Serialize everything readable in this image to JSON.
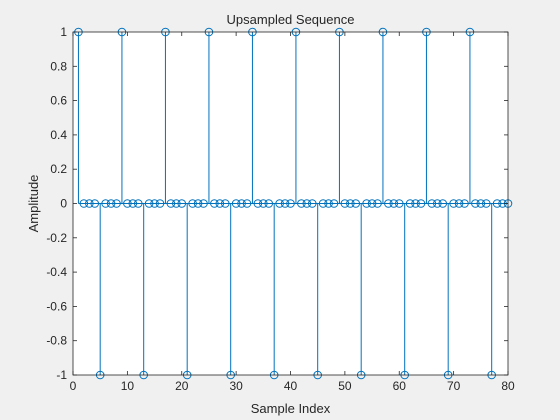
{
  "chart_data": {
    "type": "stem",
    "title": "Upsampled Sequence",
    "xlabel": "Sample Index",
    "ylabel": "Amplitude",
    "xlim": [
      0,
      80
    ],
    "ylim": [
      -1,
      1
    ],
    "xticks": [
      0,
      10,
      20,
      30,
      40,
      50,
      60,
      70,
      80
    ],
    "xtick_labels": [
      "0",
      "10",
      "20",
      "30",
      "40",
      "50",
      "60",
      "70",
      "80"
    ],
    "yticks": [
      -1,
      -0.8,
      -0.6,
      -0.4,
      -0.2,
      0,
      0.2,
      0.4,
      0.6,
      0.8,
      1
    ],
    "ytick_labels": [
      "-1",
      "-0.8",
      "-0.6",
      "-0.4",
      "-0.2",
      "0",
      "0.2",
      "0.4",
      "0.6",
      "0.8",
      "1"
    ],
    "grid": false,
    "series": [
      {
        "x": [
          1,
          2,
          3,
          4,
          5,
          6,
          7,
          8,
          9,
          10,
          11,
          12,
          13,
          14,
          15,
          16,
          17,
          18,
          19,
          20,
          21,
          22,
          23,
          24,
          25,
          26,
          27,
          28,
          29,
          30,
          31,
          32,
          33,
          34,
          35,
          36,
          37,
          38,
          39,
          40,
          41,
          42,
          43,
          44,
          45,
          46,
          47,
          48,
          49,
          50,
          51,
          52,
          53,
          54,
          55,
          56,
          57,
          58,
          59,
          60,
          61,
          62,
          63,
          64,
          65,
          66,
          67,
          68,
          69,
          70,
          71,
          72,
          73,
          74,
          75,
          76,
          77,
          78,
          79,
          80
        ],
        "y": [
          1,
          0,
          0,
          0,
          -1,
          0,
          0,
          0,
          1,
          0,
          0,
          0,
          -1,
          0,
          0,
          0,
          1,
          0,
          0,
          0,
          -1,
          0,
          0,
          0,
          1,
          0,
          0,
          0,
          -1,
          0,
          0,
          0,
          1,
          0,
          0,
          0,
          -1,
          0,
          0,
          0,
          1,
          0,
          0,
          0,
          -1,
          0,
          0,
          0,
          1,
          0,
          0,
          0,
          -1,
          0,
          0,
          0,
          1,
          0,
          0,
          0,
          -1,
          0,
          0,
          0,
          1,
          0,
          0,
          0,
          -1,
          0,
          0,
          0,
          1,
          0,
          0,
          0,
          -1,
          0,
          0,
          0
        ],
        "color": "#0072bd"
      }
    ]
  }
}
